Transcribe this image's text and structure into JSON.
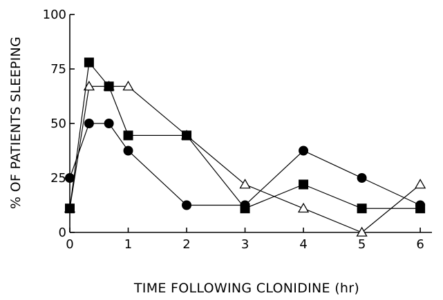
{
  "chart_data": {
    "type": "line",
    "title": "",
    "xlabel": "TIME FOLLOWING CLONIDINE (hr)",
    "ylabel": "% OF PATIENTS SLEEPING",
    "xlim": [
      0,
      6.2
    ],
    "ylim": [
      0,
      100
    ],
    "x_ticks": [
      0,
      1,
      2,
      3,
      4,
      5,
      6
    ],
    "y_ticks": [
      0,
      25,
      50,
      75,
      100
    ],
    "grid": false,
    "legend": "none",
    "series": [
      {
        "marker": "circle",
        "fill": "#000000",
        "points": [
          [
            0,
            25
          ],
          [
            0.33,
            50
          ],
          [
            0.67,
            50
          ],
          [
            1,
            37.5
          ],
          [
            2,
            12.5
          ],
          [
            3,
            12.5
          ],
          [
            4,
            37.5
          ],
          [
            5,
            25
          ],
          [
            6,
            12.5
          ]
        ]
      },
      {
        "marker": "square",
        "fill": "#000000",
        "points": [
          [
            0,
            11
          ],
          [
            0.33,
            78
          ],
          [
            0.67,
            67
          ],
          [
            1,
            44.5
          ],
          [
            2,
            44.5
          ],
          [
            3,
            11
          ],
          [
            4,
            22
          ],
          [
            5,
            11
          ],
          [
            6,
            11
          ]
        ]
      },
      {
        "marker": "triangle",
        "fill": "#ffffff",
        "points": [
          [
            0,
            11
          ],
          [
            0.33,
            67
          ],
          [
            0.67,
            67
          ],
          [
            1,
            67
          ],
          [
            2,
            44.5
          ],
          [
            3,
            22
          ],
          [
            4,
            11
          ],
          [
            5,
            0
          ],
          [
            6,
            22
          ]
        ]
      }
    ]
  }
}
